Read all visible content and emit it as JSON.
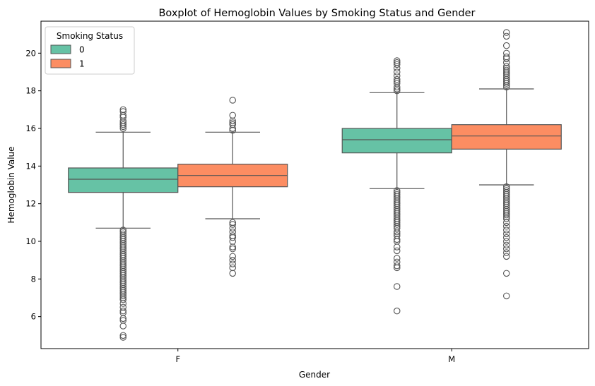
{
  "chart_data": {
    "type": "box",
    "title": "Boxplot of Hemoglobin Values by Smoking Status and Gender",
    "xlabel": "Gender",
    "ylabel": "Hemoglobin Value",
    "categories": [
      "F",
      "M"
    ],
    "ylim": [
      4.3,
      21.7
    ],
    "yticks": [
      6,
      8,
      10,
      12,
      14,
      16,
      18,
      20
    ],
    "grid": false,
    "legend": {
      "title": "Smoking Status",
      "position": "top-left"
    },
    "series": [
      {
        "name": "0",
        "color": "#66c2a5",
        "boxes": [
          {
            "category": "F",
            "whisker_low": 10.7,
            "q1": 12.6,
            "median": 13.3,
            "q3": 13.9,
            "whisker_high": 15.8,
            "outliers": [
              16.0,
              16.1,
              16.2,
              16.3,
              16.4,
              16.6,
              16.7,
              16.9,
              17.0,
              10.6,
              10.5,
              10.4,
              10.3,
              10.2,
              10.1,
              10.0,
              9.9,
              9.8,
              9.7,
              9.6,
              9.5,
              9.4,
              9.3,
              9.2,
              9.1,
              9.0,
              8.9,
              8.8,
              8.7,
              8.6,
              8.5,
              8.4,
              8.3,
              8.2,
              8.1,
              8.0,
              7.9,
              7.8,
              7.7,
              7.6,
              7.5,
              7.4,
              7.3,
              7.2,
              7.1,
              7.0,
              6.9,
              6.7,
              6.5,
              6.3,
              6.2,
              5.9,
              5.8,
              5.5,
              5.0,
              4.9
            ]
          },
          {
            "category": "M",
            "whisker_low": 12.8,
            "q1": 14.7,
            "median": 15.4,
            "q3": 16.0,
            "whisker_high": 17.9,
            "outliers": [
              18.0,
              18.1,
              18.2,
              18.4,
              18.5,
              18.6,
              18.8,
              19.0,
              19.2,
              19.4,
              19.5,
              19.6,
              12.7,
              12.6,
              12.5,
              12.4,
              12.3,
              12.2,
              12.1,
              12.0,
              11.9,
              11.8,
              11.7,
              11.6,
              11.5,
              11.4,
              11.3,
              11.2,
              11.1,
              11.0,
              10.9,
              10.8,
              10.7,
              10.5,
              10.4,
              10.3,
              10.1,
              10.0,
              9.7,
              9.5,
              9.1,
              8.9,
              8.7,
              8.6,
              7.6,
              6.3
            ]
          }
        ]
      },
      {
        "name": "1",
        "color": "#fc8d62",
        "boxes": [
          {
            "category": "F",
            "whisker_low": 11.2,
            "q1": 12.9,
            "median": 13.5,
            "q3": 14.1,
            "whisker_high": 15.8,
            "outliers": [
              15.9,
              16.0,
              16.2,
              16.3,
              16.4,
              16.7,
              17.5,
              11.0,
              10.9,
              10.7,
              10.5,
              10.3,
              10.2,
              10.0,
              9.7,
              9.6,
              9.2,
              9.0,
              8.8,
              8.6,
              8.3
            ]
          },
          {
            "category": "M",
            "whisker_low": 13.0,
            "q1": 14.9,
            "median": 15.6,
            "q3": 16.2,
            "whisker_high": 18.1,
            "outliers": [
              18.2,
              18.3,
              18.4,
              18.5,
              18.6,
              18.7,
              18.8,
              18.9,
              19.0,
              19.1,
              19.2,
              19.3,
              19.5,
              19.7,
              19.8,
              20.0,
              20.4,
              20.9,
              21.1,
              12.9,
              12.8,
              12.7,
              12.6,
              12.5,
              12.4,
              12.3,
              12.2,
              12.1,
              12.0,
              11.9,
              11.8,
              11.7,
              11.6,
              11.5,
              11.4,
              11.3,
              11.2,
              11.0,
              10.8,
              10.6,
              10.4,
              10.2,
              10.0,
              9.8,
              9.6,
              9.4,
              9.2,
              8.3,
              7.1
            ]
          }
        ]
      }
    ]
  }
}
